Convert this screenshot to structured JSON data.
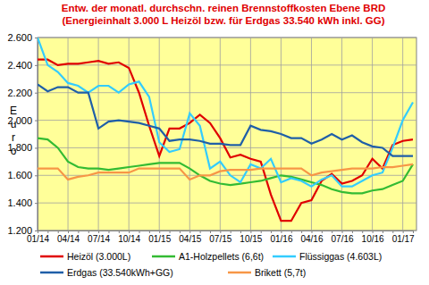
{
  "chart_data": {
    "type": "line",
    "title": "Entw. der monatl. durchschn. reinen Brennstoffkosten Ebene BRD",
    "subtitle": "(Energieinhalt 3.000 L Heizöl bzw. für Erdgas 33.540 kWh inkl. GG)",
    "y_label": "Euro",
    "categories": [
      "01/14",
      null,
      null,
      "04/14",
      null,
      null,
      "07/14",
      null,
      null,
      "10/14",
      null,
      null,
      "01/15",
      null,
      null,
      "04/15",
      null,
      null,
      "07/15",
      null,
      null,
      "10/15",
      null,
      null,
      "01/16",
      null,
      null,
      "04/16",
      null,
      null,
      "07/16",
      null,
      null,
      "10/16",
      null,
      null,
      "01/17",
      null
    ],
    "series": [
      {
        "name": "Heizöl (3.000L)",
        "color": "#e00000",
        "values": [
          2440,
          2440,
          2400,
          2410,
          2410,
          2420,
          2430,
          2410,
          2420,
          2380,
          2200,
          1960,
          1740,
          1940,
          1940,
          1980,
          2040,
          1980,
          1870,
          1730,
          1750,
          1720,
          1700,
          1460,
          1270,
          1270,
          1400,
          1420,
          1560,
          1610,
          1540,
          1560,
          1600,
          1720,
          1650,
          1820,
          1850,
          1860
        ]
      },
      {
        "name": "A1-Holzpellets (6,6t)",
        "color": "#33bb33",
        "values": [
          1870,
          1860,
          1800,
          1700,
          1660,
          1650,
          1650,
          1640,
          1650,
          1660,
          1670,
          1680,
          1690,
          1690,
          1690,
          1650,
          1600,
          1560,
          1540,
          1530,
          1540,
          1550,
          1560,
          1580,
          1600,
          1590,
          1570,
          1550,
          1530,
          1500,
          1480,
          1470,
          1470,
          1490,
          1500,
          1530,
          1560,
          1680
        ]
      },
      {
        "name": "Flüssiggas (4.603L)",
        "color": "#33ccff",
        "values": [
          2600,
          2400,
          2350,
          2270,
          2250,
          2200,
          2250,
          2250,
          2200,
          2260,
          2280,
          2170,
          1840,
          1770,
          1790,
          2050,
          1960,
          1650,
          1700,
          1600,
          1550,
          1680,
          1650,
          1720,
          1550,
          1580,
          1560,
          1520,
          1570,
          1600,
          1520,
          1520,
          1560,
          1600,
          1620,
          1800,
          2000,
          2130
        ]
      },
      {
        "name": "Erdgas (33.540kWh+GG)",
        "color": "#1f5fa8",
        "values": [
          2260,
          2210,
          2240,
          2240,
          2200,
          2200,
          1940,
          1990,
          2000,
          1990,
          1980,
          1960,
          1940,
          1850,
          1860,
          1860,
          1850,
          1830,
          1830,
          1820,
          1820,
          1960,
          1930,
          1920,
          1900,
          1870,
          1870,
          1830,
          1860,
          1900,
          1860,
          1890,
          1840,
          1810,
          1800,
          1740,
          1740,
          1740
        ]
      },
      {
        "name": "Brikett (5,7t)",
        "color": "#f79646",
        "values": [
          1650,
          1650,
          1650,
          1570,
          1590,
          1600,
          1620,
          1620,
          1620,
          1620,
          1650,
          1650,
          1650,
          1650,
          1650,
          1570,
          1600,
          1600,
          1630,
          1640,
          1640,
          1640,
          1650,
          1650,
          1650,
          1650,
          1650,
          1600,
          1620,
          1630,
          1640,
          1650,
          1650,
          1650,
          1660,
          1660,
          1670,
          1680
        ]
      }
    ],
    "ylim": [
      1200,
      2600
    ],
    "yticks": [
      {
        "value": 1200,
        "label": "1.200"
      },
      {
        "value": 1400,
        "label": "1.400"
      },
      {
        "value": 1600,
        "label": "1.600"
      },
      {
        "value": 1800,
        "label": "1.800"
      },
      {
        "value": 2000,
        "label": "2.000"
      },
      {
        "value": 2200,
        "label": "2.200"
      },
      {
        "value": 2400,
        "label": "2.400"
      },
      {
        "value": 2600,
        "label": "2.600"
      }
    ],
    "grid": true,
    "legend": "bottom"
  }
}
